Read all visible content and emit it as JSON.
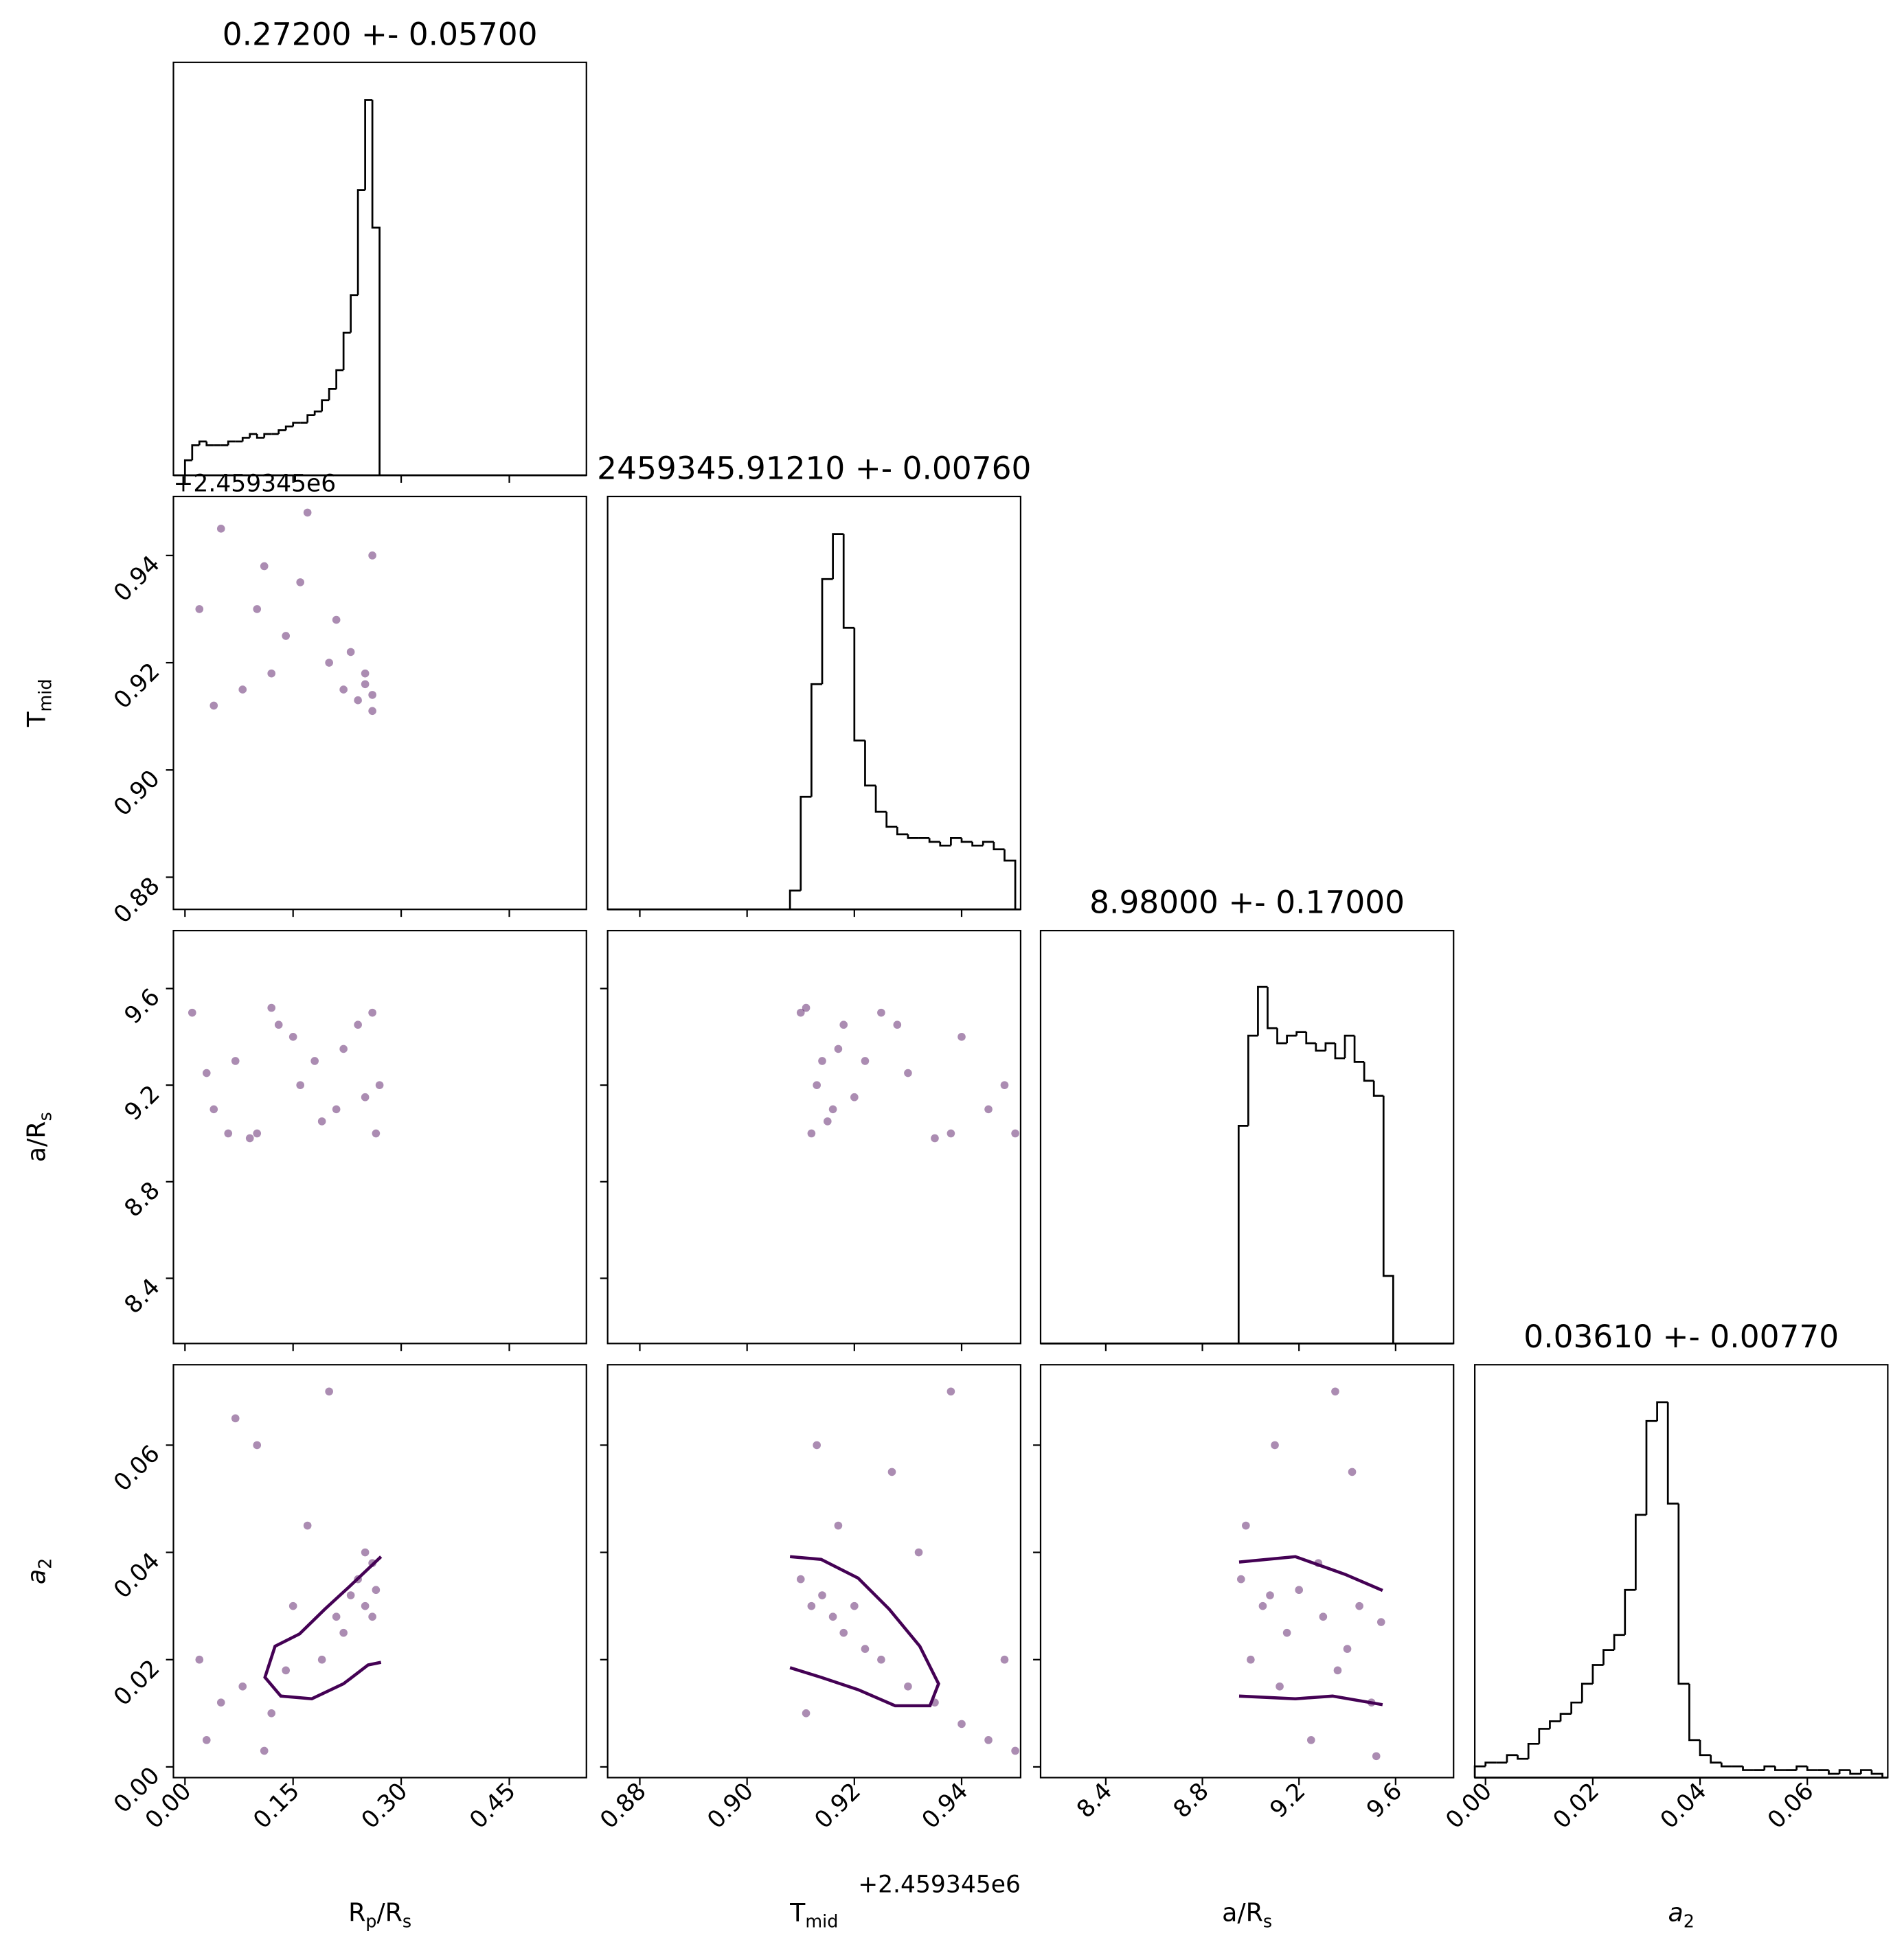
{
  "chart_data": {
    "type": "corner",
    "color": "#440154",
    "hist_color": "#000000",
    "offset_text": "+2.459345e6",
    "params": [
      {
        "label": [
          {
            "text": "R"
          },
          {
            "text": "p",
            "sub": true
          },
          {
            "text": "/R"
          },
          {
            "text": "s",
            "sub": true
          }
        ],
        "lim": [
          -0.016,
          0.557
        ],
        "ticks": [
          {
            "value": 0,
            "label": "0.00"
          },
          0.15,
          {
            "value": 0.3,
            "label": "0.30"
          },
          0.45
        ]
      },
      {
        "label": [
          {
            "text": "T"
          },
          {
            "text": "mid",
            "sub": true
          }
        ],
        "lim": [
          0.874,
          0.951
        ],
        "offset": true,
        "ticks": [
          0.88,
          {
            "value": 0.9,
            "label": "0.90"
          },
          0.92,
          0.94
        ]
      },
      {
        "label": [
          {
            "text": "a/R"
          },
          {
            "text": "s",
            "sub": true
          }
        ],
        "lim": [
          8.13,
          9.84
        ],
        "ticks": [
          8.4,
          8.8,
          9.2,
          9.6
        ]
      },
      {
        "label": [
          {
            "text": "a",
            "italic": true
          },
          {
            "text": "2",
            "sub": true
          }
        ],
        "lim": [
          -0.002,
          0.075
        ],
        "ticks": [
          {
            "value": 0,
            "label": "0.00"
          },
          0.02,
          0.04,
          0.06
        ]
      }
    ],
    "diagonal": [
      {
        "title": "0.27200 +- 0.05700",
        "ylim": [
          0,
          110
        ],
        "bins": [
          0,
          0.01,
          0.02,
          0.03,
          0.04,
          0.05,
          0.06,
          0.07,
          0.08,
          0.09,
          0.1,
          0.11,
          0.12,
          0.13,
          0.14,
          0.15,
          0.16,
          0.17,
          0.18,
          0.19,
          0.2,
          0.21,
          0.22,
          0.23,
          0.24,
          0.25,
          0.26,
          0.27
        ],
        "counts": [
          4,
          8,
          9,
          8,
          8,
          8,
          9,
          9,
          10,
          11,
          10,
          11,
          11,
          12,
          13,
          14,
          14,
          16,
          17,
          20,
          23,
          28,
          38,
          48,
          76,
          100,
          66
        ]
      },
      {
        "title": "2459345.91210 +- 0.00760",
        "ylim": [
          0,
          110
        ],
        "bins": [
          0.908,
          0.91,
          0.912,
          0.914,
          0.916,
          0.918,
          0.92,
          0.922,
          0.924,
          0.926,
          0.928,
          0.93,
          0.932,
          0.934,
          0.936,
          0.938,
          0.94,
          0.942,
          0.944,
          0.946,
          0.948,
          0.95
        ],
        "counts": [
          5,
          30,
          60,
          88,
          100,
          75,
          45,
          33,
          26,
          22,
          20,
          19,
          19,
          18,
          17,
          19,
          18,
          17,
          18,
          16,
          13
        ]
      },
      {
        "title": "8.98000 +- 0.17000",
        "ylim": [
          0,
          110
        ],
        "bins": [
          8.95,
          8.99,
          9.03,
          9.07,
          9.11,
          9.15,
          9.19,
          9.23,
          9.27,
          9.31,
          9.35,
          9.39,
          9.43,
          9.47,
          9.51,
          9.55,
          9.59
        ],
        "counts": [
          58,
          82,
          95,
          84,
          80,
          82,
          83,
          80,
          78,
          80,
          76,
          82,
          75,
          70,
          66,
          18
        ]
      },
      {
        "title": "0.03610 +- 0.00770",
        "ylim": [
          0,
          110
        ],
        "bins": [
          -0.002,
          0,
          0.002,
          0.004,
          0.006,
          0.008,
          0.01,
          0.012,
          0.014,
          0.016,
          0.018,
          0.02,
          0.022,
          0.024,
          0.026,
          0.028,
          0.03,
          0.032,
          0.034,
          0.036,
          0.038,
          0.04,
          0.042,
          0.044,
          0.046,
          0.048,
          0.05,
          0.052,
          0.054,
          0.056,
          0.058,
          0.06,
          0.062,
          0.064,
          0.066,
          0.068,
          0.07,
          0.072,
          0.074
        ],
        "counts": [
          3,
          4,
          4,
          6,
          5,
          9,
          13,
          15,
          17,
          20,
          25,
          30,
          34,
          38,
          50,
          70,
          95,
          100,
          73,
          25,
          10,
          6,
          4,
          3,
          3,
          2,
          2,
          3,
          2,
          2,
          3,
          2,
          2,
          1,
          2,
          1,
          2,
          1
        ]
      }
    ],
    "pairs": [
      {
        "x": [
          0.02,
          0.05,
          0.08,
          0.11,
          0.14,
          0.17,
          0.2,
          0.22,
          0.24,
          0.25,
          0.26,
          0.23,
          0.25,
          0.26,
          0.04,
          0.1,
          0.16,
          0.21,
          0.26,
          0.12
        ],
        "y": [
          0.93,
          0.945,
          0.915,
          0.938,
          0.925,
          0.948,
          0.92,
          0.915,
          0.913,
          0.918,
          0.911,
          0.922,
          0.916,
          0.914,
          0.912,
          0.93,
          0.935,
          0.928,
          0.94,
          0.918
        ],
        "lines": []
      },
      {
        "x": [
          0.01,
          0.04,
          0.07,
          0.1,
          0.13,
          0.16,
          0.19,
          0.22,
          0.25,
          0.26,
          0.03,
          0.09,
          0.15,
          0.21,
          0.265,
          0.12,
          0.18,
          0.24,
          0.06,
          0.27
        ],
        "y": [
          9.5,
          9.1,
          9.3,
          9.0,
          9.45,
          9.2,
          9.05,
          9.35,
          9.15,
          9.5,
          9.25,
          8.98,
          9.4,
          9.1,
          9.0,
          9.52,
          9.3,
          9.45,
          9.0,
          9.2
        ],
        "lines": []
      },
      {
        "x": [
          0.91,
          0.912,
          0.914,
          0.916,
          0.918,
          0.913,
          0.915,
          0.917,
          0.92,
          0.925,
          0.93,
          0.935,
          0.94,
          0.945,
          0.95,
          0.911,
          0.922,
          0.928,
          0.938,
          0.948
        ],
        "y": [
          9.5,
          9.0,
          9.3,
          9.1,
          9.45,
          9.2,
          9.05,
          9.35,
          9.15,
          9.5,
          9.25,
          8.98,
          9.4,
          9.1,
          9.0,
          9.52,
          9.3,
          9.45,
          9.0,
          9.2
        ],
        "lines": []
      },
      {
        "x": [
          0.02,
          0.05,
          0.08,
          0.1,
          0.12,
          0.15,
          0.17,
          0.19,
          0.21,
          0.23,
          0.24,
          0.25,
          0.26,
          0.26,
          0.25,
          0.03,
          0.07,
          0.14,
          0.2,
          0.265,
          0.22,
          0.11
        ],
        "y": [
          0.02,
          0.012,
          0.015,
          0.06,
          0.01,
          0.03,
          0.045,
          0.02,
          0.028,
          0.032,
          0.035,
          0.03,
          0.038,
          0.028,
          0.04,
          0.005,
          0.065,
          0.018,
          0.07,
          0.033,
          0.025,
          0.003
        ],
        "lines": [
          {
            "x": [
              0.272,
              0.228,
              0.194,
              0.159,
              0.125,
              0.111,
              0.133,
              0.176,
              0.22,
              0.254,
              0.272
            ],
            "y": [
              0.0392,
              0.0336,
              0.0294,
              0.0248,
              0.0225,
              0.0167,
              0.0132,
              0.0127,
              0.0155,
              0.019,
              0.0195
            ]
          }
        ]
      },
      {
        "x": [
          0.91,
          0.912,
          0.914,
          0.916,
          0.918,
          0.92,
          0.922,
          0.925,
          0.93,
          0.935,
          0.94,
          0.945,
          0.95,
          0.913,
          0.917,
          0.927,
          0.938,
          0.948,
          0.911,
          0.932
        ],
        "y": [
          0.035,
          0.03,
          0.032,
          0.028,
          0.025,
          0.03,
          0.022,
          0.02,
          0.015,
          0.012,
          0.008,
          0.005,
          0.003,
          0.06,
          0.045,
          0.055,
          0.07,
          0.02,
          0.01,
          0.04
        ],
        "lines": [
          {
            "x": [
              0.908,
              0.9138,
              0.9207,
              0.9265,
              0.9322,
              0.9357,
              0.9341,
              0.9276,
              0.9207,
              0.9138,
              0.908
            ],
            "y": [
              0.0392,
              0.0387,
              0.0352,
              0.0294,
              0.0225,
              0.0155,
              0.0114,
              0.0114,
              0.0144,
              0.0167,
              0.0185
            ]
          }
        ]
      },
      {
        "x": [
          8.96,
          9.0,
          9.05,
          9.1,
          9.15,
          9.2,
          9.25,
          9.3,
          9.35,
          9.4,
          9.45,
          9.5,
          9.54,
          8.98,
          9.12,
          9.28,
          9.42,
          9.52,
          9.08,
          9.36
        ],
        "y": [
          0.035,
          0.02,
          0.03,
          0.06,
          0.025,
          0.033,
          0.005,
          0.028,
          0.07,
          0.022,
          0.03,
          0.012,
          0.027,
          0.045,
          0.015,
          0.038,
          0.055,
          0.002,
          0.032,
          0.018
        ],
        "lines": [
          {
            "x": [
              8.952,
              9.185,
              9.391,
              9.546
            ],
            "y": [
              0.0382,
              0.0392,
              0.0359,
              0.0329
            ]
          },
          {
            "x": [
              8.952,
              9.185,
              9.339,
              9.546
            ],
            "y": [
              0.0132,
              0.0127,
              0.0132,
              0.0116
            ]
          }
        ]
      }
    ]
  }
}
